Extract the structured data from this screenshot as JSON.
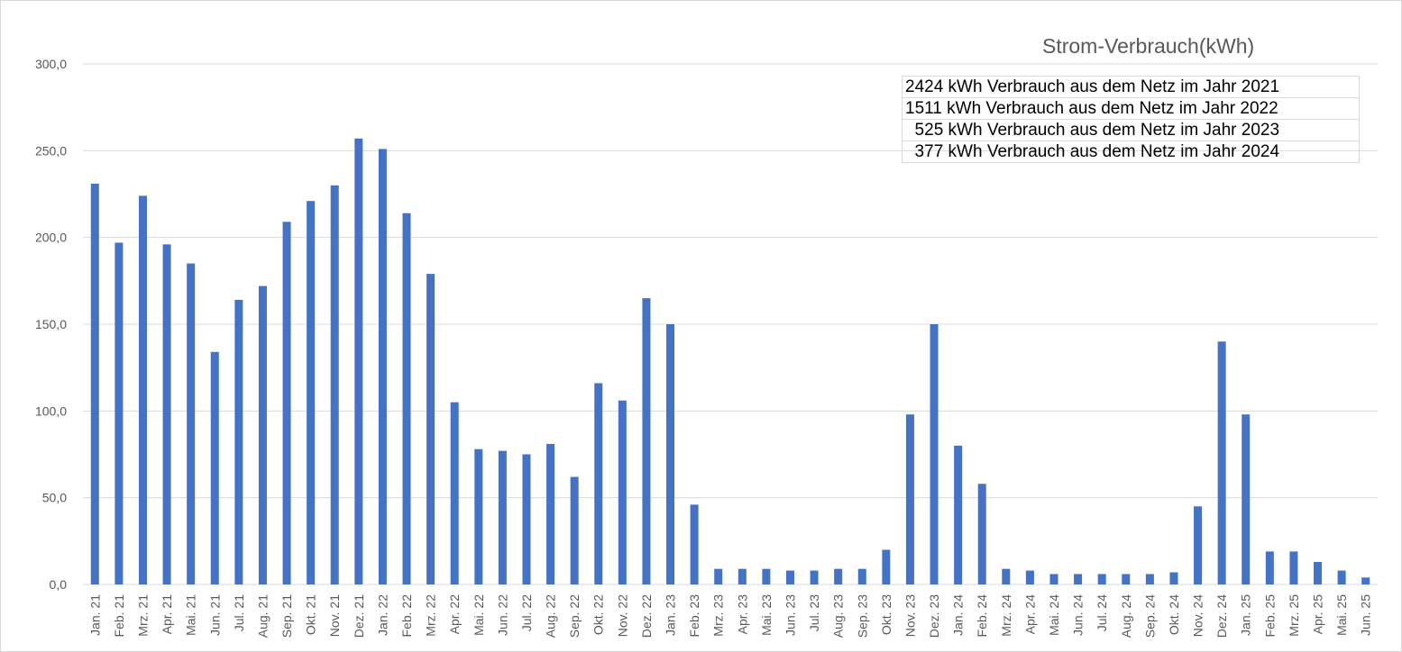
{
  "chart_data": {
    "type": "bar",
    "title": "Strom-Verbrauch(kWh)",
    "ylim": [
      0,
      300
    ],
    "yticks": [
      "0,0",
      "50,0",
      "100,0",
      "150,0",
      "200,0",
      "250,0",
      "300,0"
    ],
    "ytick_values": [
      0,
      50,
      100,
      150,
      200,
      250,
      300
    ],
    "grid": true,
    "bar_color": "#4472c4",
    "categories": [
      "Jan. 21",
      "Feb. 21",
      "Mrz. 21",
      "Apr. 21",
      "Mai. 21",
      "Jun. 21",
      "Jul. 21",
      "Aug. 21",
      "Sep. 21",
      "Okt. 21",
      "Nov. 21",
      "Dez. 21",
      "Jan. 22",
      "Feb. 22",
      "Mrz. 22",
      "Apr. 22",
      "Mai. 22",
      "Jun. 22",
      "Jul. 22",
      "Aug. 22",
      "Sep. 22",
      "Okt. 22",
      "Nov. 22",
      "Dez. 22",
      "Jan. 23",
      "Feb. 23",
      "Mrz. 23",
      "Apr. 23",
      "Mai. 23",
      "Jun. 23",
      "Jul. 23",
      "Aug. 23",
      "Sep. 23",
      "Okt. 23",
      "Nov. 23",
      "Dez. 23",
      "Jan. 24",
      "Feb. 24",
      "Mrz. 24",
      "Apr. 24",
      "Mai. 24",
      "Jun. 24",
      "Jul. 24",
      "Aug. 24",
      "Sep. 24",
      "Okt. 24",
      "Nov. 24",
      "Dez. 24",
      "Jan. 25",
      "Feb. 25",
      "Mrz. 25",
      "Apr. 25",
      "Mai. 25",
      "Jun. 25"
    ],
    "values": [
      231,
      197,
      224,
      196,
      185,
      134,
      164,
      172,
      209,
      221,
      230,
      257,
      251,
      214,
      179,
      105,
      78,
      77,
      75,
      81,
      62,
      116,
      106,
      165,
      150,
      46,
      9,
      9,
      9,
      8,
      8,
      9,
      9,
      20,
      98,
      150,
      80,
      58,
      9,
      8,
      6,
      6,
      6,
      6,
      6,
      7,
      45,
      140,
      98,
      19,
      19,
      13,
      8,
      4
    ],
    "annotations": [
      "2424 kWh Verbrauch aus dem Netz im Jahr 2021",
      "1511 kWh Verbrauch aus dem Netz im Jahr 2022",
      "  525 kWh Verbrauch aus dem Netz im Jahr 2023",
      "  377 kWh Verbrauch aus dem Netz im Jahr 2024"
    ]
  }
}
